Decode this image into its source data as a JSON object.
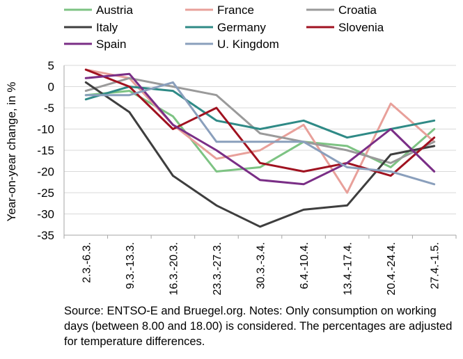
{
  "chart_data": {
    "type": "line",
    "title": "",
    "xlabel": "",
    "ylabel": "Year-on-year change, in %",
    "ylim": [
      -35,
      5
    ],
    "yticks": [
      5,
      0,
      -5,
      -10,
      -15,
      -20,
      -25,
      -30,
      -35
    ],
    "grid": "horizontal",
    "legend_position": "top",
    "categories": [
      "2.3.-6.3.",
      "9.3.-13.3.",
      "16.3.-20.3.",
      "23.3.-27.3.",
      "30.3.-3.4.",
      "6.4.-10.4.",
      "13.4.-17.4.",
      "20.4.-24.4.",
      "27.4.-1.5."
    ],
    "series": [
      {
        "name": "Austria",
        "color": "#7dc383",
        "values": [
          -2,
          -1,
          -7,
          -20,
          -19,
          -13,
          -14,
          -19,
          -10
        ]
      },
      {
        "name": "France",
        "color": "#e8a09a",
        "values": [
          4,
          2,
          -9,
          -17,
          -15,
          -9,
          -25,
          -4,
          -13
        ]
      },
      {
        "name": "Croatia",
        "color": "#9a9a9a",
        "values": [
          -1,
          2,
          0,
          -2,
          -11,
          -13,
          -15,
          -18,
          -13
        ]
      },
      {
        "name": "Italy",
        "color": "#3e3e3e",
        "values": [
          1,
          -6,
          -21,
          -28,
          -33,
          -29,
          -28,
          -16,
          -14
        ]
      },
      {
        "name": "Germany",
        "color": "#2f8a86",
        "values": [
          -3,
          0,
          -1,
          -8,
          -10,
          -8,
          -12,
          -10,
          -8
        ]
      },
      {
        "name": "Slovenia",
        "color": "#a01220",
        "values": [
          4,
          0,
          -10,
          -5,
          -18,
          -20,
          -18,
          -21,
          -12
        ]
      },
      {
        "name": "Spain",
        "color": "#7a2e86",
        "values": [
          2,
          3,
          -9,
          -15,
          -22,
          -23,
          -18,
          -10,
          -20
        ]
      },
      {
        "name": "U. Kingdom",
        "color": "#8a9fbc",
        "values": [
          -2,
          -2,
          1,
          -13,
          -13,
          -13,
          -19,
          -20,
          -23
        ]
      }
    ]
  },
  "source_note": "Source: ENTSO-E and Bruegel.org. Notes: Only consumption on working days (between 8.00 and 18.00) is considered. The percentages are adjusted for temperature differences."
}
